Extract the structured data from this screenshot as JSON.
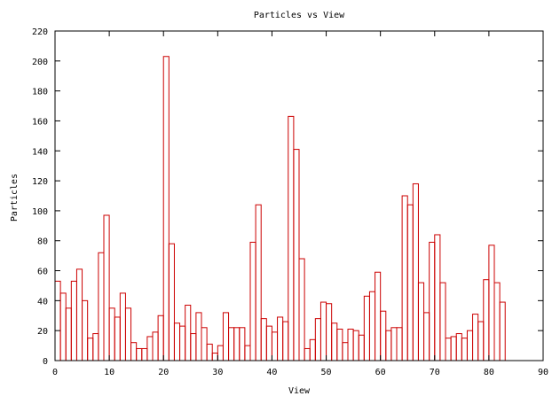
{
  "chart_data": {
    "type": "bar",
    "title": "Particles vs View",
    "xlabel": "View",
    "ylabel": "Particles",
    "xlim": [
      0,
      90
    ],
    "ylim": [
      0,
      220
    ],
    "xticks": [
      0,
      10,
      20,
      30,
      40,
      50,
      60,
      70,
      80,
      90
    ],
    "yticks": [
      0,
      20,
      40,
      60,
      80,
      100,
      120,
      140,
      160,
      180,
      200,
      220
    ],
    "grid": false,
    "legend": "none",
    "bar_color": "#cc0000",
    "x": [
      0,
      1,
      2,
      3,
      4,
      5,
      6,
      7,
      8,
      9,
      10,
      11,
      12,
      13,
      14,
      15,
      16,
      17,
      18,
      19,
      20,
      21,
      22,
      23,
      24,
      25,
      26,
      27,
      28,
      29,
      30,
      31,
      32,
      33,
      34,
      35,
      36,
      37,
      38,
      39,
      40,
      41,
      42,
      43,
      44,
      45,
      46,
      47,
      48,
      49,
      50,
      51,
      52,
      53,
      54,
      55,
      56,
      57,
      58,
      59,
      60,
      61,
      62,
      63,
      64,
      65,
      66,
      67,
      68,
      69,
      70,
      71,
      72,
      73,
      74,
      75,
      76,
      77,
      78,
      79,
      80,
      81,
      82
    ],
    "values": [
      53,
      45,
      35,
      53,
      61,
      40,
      15,
      18,
      72,
      97,
      35,
      29,
      45,
      35,
      12,
      8,
      8,
      16,
      19,
      30,
      203,
      78,
      25,
      23,
      37,
      18,
      32,
      22,
      11,
      5,
      10,
      32,
      22,
      22,
      22,
      10,
      79,
      104,
      28,
      23,
      19,
      29,
      26,
      163,
      141,
      68,
      8,
      14,
      28,
      39,
      38,
      25,
      21,
      12,
      21,
      20,
      17,
      43,
      46,
      59,
      33,
      20,
      22,
      22,
      110,
      104,
      118,
      52,
      32,
      79,
      84,
      52,
      15,
      16,
      18,
      15,
      20,
      31,
      26,
      54,
      77,
      52,
      39
    ]
  }
}
